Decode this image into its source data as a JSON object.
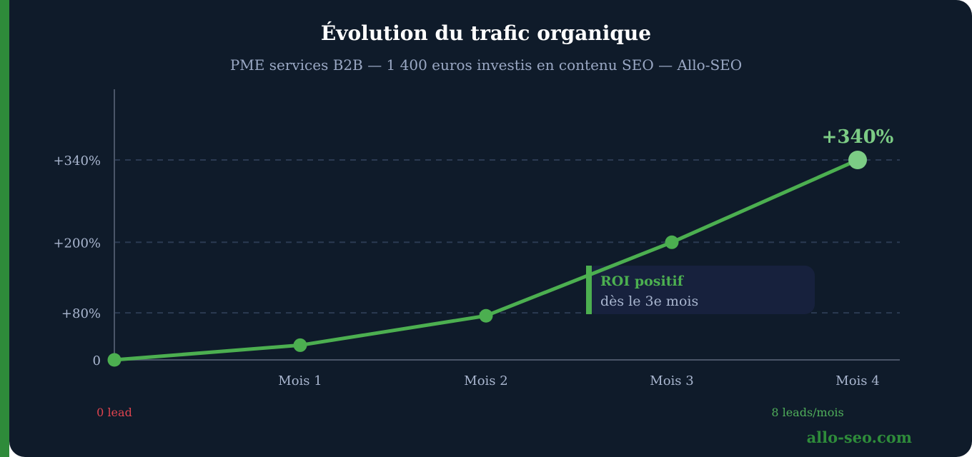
{
  "chart_data": {
    "type": "line",
    "title": "Évolution du trafic organique",
    "subtitle": "PME services B2B — 1 400 euros investis en contenu SEO — Allo-SEO",
    "categories": [
      "",
      "Mois 1",
      "Mois 2",
      "Mois 3",
      "Mois 4"
    ],
    "series": [
      {
        "values": [
          0,
          25,
          75,
          200,
          340
        ]
      }
    ],
    "yticks": [
      0,
      80,
      200,
      340
    ],
    "ytick_labels": [
      "0",
      "+80%",
      "+200%",
      "+340%"
    ],
    "ylim": [
      0,
      470
    ],
    "grid": true,
    "peak_label": "+340%",
    "annotation": {
      "title": "ROI positif",
      "text": "dès le 3e mois"
    },
    "lead_start": "0 lead",
    "lead_end": "8 leads/mois",
    "brand": "allo-seo.com",
    "colors": {
      "line": "#4caf50",
      "grid": "#2b3a52",
      "axis": "#4a5568",
      "background": "#0f1b2a",
      "accent": "#2e8b3a"
    }
  }
}
